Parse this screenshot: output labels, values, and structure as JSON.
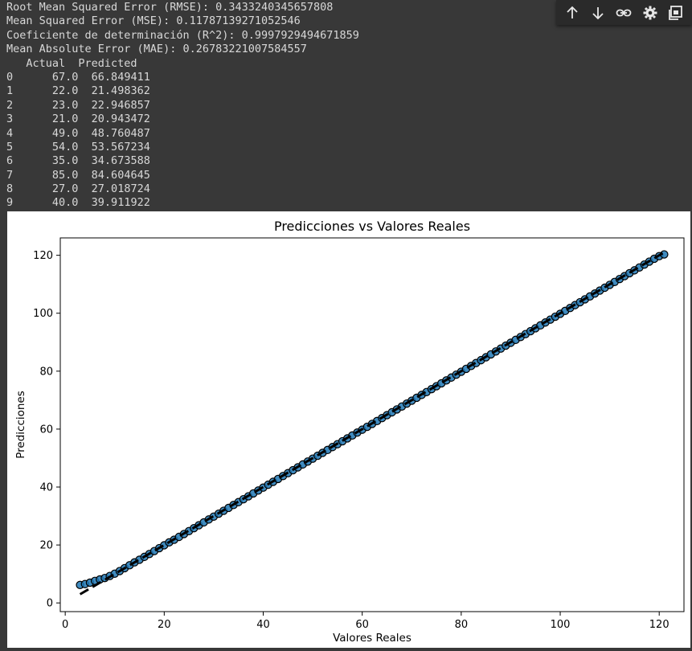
{
  "output": {
    "metrics": [
      "Root Mean Squared Error (RMSE): 0.3433240345657808",
      "Mean Squared Error (MSE): 0.11787139271052546",
      "Coeficiente de determinación (R^2): 0.9997929494671859",
      "Mean Absolute Error (MAE): 0.26783221007584557"
    ],
    "table_header": "   Actual  Predicted",
    "table_rows": [
      {
        "index": "0",
        "actual": "67.0",
        "predicted": "66.849411"
      },
      {
        "index": "1",
        "actual": "22.0",
        "predicted": "21.498362"
      },
      {
        "index": "2",
        "actual": "23.0",
        "predicted": "22.946857"
      },
      {
        "index": "3",
        "actual": "21.0",
        "predicted": "20.943472"
      },
      {
        "index": "4",
        "actual": "49.0",
        "predicted": "48.760487"
      },
      {
        "index": "5",
        "actual": "54.0",
        "predicted": "53.567234"
      },
      {
        "index": "6",
        "actual": "35.0",
        "predicted": "34.673588"
      },
      {
        "index": "7",
        "actual": "85.0",
        "predicted": "84.604645"
      },
      {
        "index": "8",
        "actual": "27.0",
        "predicted": "27.018724"
      },
      {
        "index": "9",
        "actual": "40.0",
        "predicted": "39.911922"
      }
    ]
  },
  "toolbar": {
    "buttons": [
      {
        "icon": "arrow-up-icon",
        "action": "move-cell-up"
      },
      {
        "icon": "arrow-down-icon",
        "action": "move-cell-down"
      },
      {
        "icon": "link-icon",
        "action": "copy-link"
      },
      {
        "icon": "gear-icon",
        "action": "settings"
      },
      {
        "icon": "mirror-cell-icon",
        "action": "mirror-cell"
      }
    ]
  },
  "chart_data": {
    "type": "scatter",
    "title": "Predicciones vs Valores Reales",
    "xlabel": "Valores Reales",
    "ylabel": "Predicciones",
    "xlim": [
      -1,
      125
    ],
    "ylim": [
      -3,
      126
    ],
    "xticks": [
      0,
      20,
      40,
      60,
      80,
      100,
      120
    ],
    "yticks": [
      0,
      20,
      40,
      60,
      80,
      100,
      120
    ],
    "grid": false,
    "marker_color": "#1f77b4",
    "marker_edge": "#000000",
    "reference_line": {
      "style": "dashed",
      "color": "#000000",
      "x": [
        3,
        121
      ],
      "y": [
        3,
        121
      ]
    },
    "x": [
      3,
      4,
      5,
      6,
      7,
      8,
      9,
      10,
      11,
      12,
      13,
      14,
      15,
      16,
      17,
      18,
      19,
      20,
      21,
      22,
      23,
      24,
      25,
      26,
      27,
      28,
      29,
      30,
      31,
      32,
      33,
      34,
      35,
      36,
      37,
      38,
      39,
      40,
      41,
      42,
      43,
      44,
      45,
      46,
      47,
      48,
      49,
      50,
      51,
      52,
      53,
      54,
      55,
      56,
      57,
      58,
      59,
      60,
      61,
      62,
      63,
      64,
      65,
      66,
      67,
      68,
      69,
      70,
      71,
      72,
      73,
      74,
      75,
      76,
      77,
      78,
      79,
      80,
      81,
      82,
      83,
      84,
      85,
      86,
      87,
      88,
      89,
      90,
      91,
      92,
      93,
      94,
      95,
      96,
      97,
      98,
      99,
      100,
      101,
      102,
      103,
      104,
      105,
      106,
      107,
      108,
      109,
      110,
      111,
      112,
      113,
      114,
      115,
      116,
      117,
      118,
      119,
      120,
      121
    ],
    "y": [
      6.2,
      6.5,
      7.0,
      7.6,
      8.1,
      8.6,
      9.3,
      10.1,
      11.0,
      12.0,
      13.0,
      14.0,
      14.9,
      15.9,
      16.9,
      17.9,
      18.9,
      19.9,
      20.9,
      21.8,
      22.8,
      23.8,
      24.8,
      25.8,
      26.8,
      27.8,
      28.8,
      29.8,
      30.8,
      31.8,
      32.8,
      33.8,
      34.8,
      35.8,
      36.8,
      37.8,
      38.8,
      39.8,
      40.8,
      41.8,
      42.8,
      43.8,
      44.8,
      45.8,
      46.8,
      47.8,
      48.8,
      49.8,
      50.8,
      51.8,
      52.8,
      53.8,
      54.8,
      55.8,
      56.8,
      57.8,
      58.8,
      59.8,
      60.8,
      61.8,
      62.8,
      63.8,
      64.8,
      65.8,
      66.8,
      67.8,
      68.8,
      69.8,
      70.8,
      71.8,
      72.8,
      73.8,
      74.8,
      75.8,
      76.8,
      77.8,
      78.8,
      79.8,
      80.8,
      81.8,
      82.8,
      83.8,
      84.8,
      85.8,
      86.8,
      87.8,
      88.8,
      89.8,
      90.8,
      91.8,
      92.8,
      93.8,
      94.8,
      95.8,
      96.8,
      97.8,
      98.8,
      99.8,
      100.8,
      101.8,
      102.8,
      103.8,
      104.8,
      105.8,
      106.8,
      107.8,
      108.8,
      109.8,
      110.8,
      111.8,
      112.8,
      113.8,
      114.8,
      115.8,
      116.8,
      117.8,
      118.8,
      119.7,
      120.3
    ]
  }
}
